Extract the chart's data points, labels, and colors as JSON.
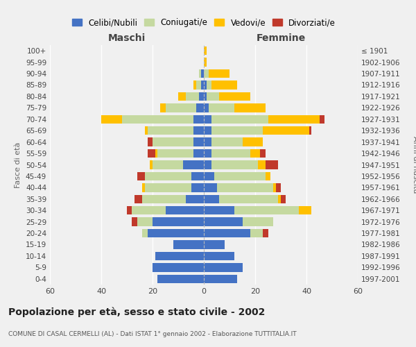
{
  "age_groups": [
    "100+",
    "95-99",
    "90-94",
    "85-89",
    "80-84",
    "75-79",
    "70-74",
    "65-69",
    "60-64",
    "55-59",
    "50-54",
    "45-49",
    "40-44",
    "35-39",
    "30-34",
    "25-29",
    "20-24",
    "15-19",
    "10-14",
    "5-9",
    "0-4"
  ],
  "birth_years": [
    "≤ 1901",
    "1902-1906",
    "1907-1911",
    "1912-1916",
    "1917-1921",
    "1922-1926",
    "1927-1931",
    "1932-1936",
    "1937-1941",
    "1942-1946",
    "1947-1951",
    "1952-1956",
    "1957-1961",
    "1962-1966",
    "1967-1971",
    "1972-1976",
    "1977-1981",
    "1982-1986",
    "1987-1991",
    "1992-1996",
    "1997-2001"
  ],
  "maschi": {
    "celibi": [
      0,
      0,
      1,
      1,
      2,
      3,
      4,
      4,
      4,
      4,
      8,
      5,
      5,
      7,
      15,
      20,
      22,
      12,
      19,
      20,
      18
    ],
    "coniugati": [
      0,
      0,
      1,
      2,
      5,
      12,
      28,
      18,
      16,
      14,
      12,
      18,
      18,
      17,
      13,
      6,
      2,
      0,
      0,
      0,
      0
    ],
    "vedovi": [
      0,
      0,
      0,
      1,
      3,
      2,
      8,
      1,
      0,
      1,
      1,
      0,
      1,
      0,
      0,
      0,
      0,
      0,
      0,
      0,
      0
    ],
    "divorziati": [
      0,
      0,
      0,
      0,
      0,
      0,
      0,
      0,
      2,
      3,
      0,
      3,
      0,
      3,
      2,
      2,
      0,
      0,
      0,
      0,
      0
    ]
  },
  "femmine": {
    "nubili": [
      0,
      0,
      0,
      1,
      1,
      2,
      3,
      3,
      3,
      3,
      3,
      4,
      5,
      6,
      12,
      15,
      18,
      8,
      12,
      15,
      13
    ],
    "coniugate": [
      0,
      0,
      2,
      2,
      5,
      10,
      22,
      20,
      12,
      15,
      18,
      20,
      22,
      23,
      25,
      12,
      5,
      0,
      0,
      0,
      0
    ],
    "vedove": [
      1,
      1,
      8,
      10,
      12,
      12,
      20,
      18,
      8,
      4,
      3,
      2,
      1,
      1,
      5,
      0,
      0,
      0,
      0,
      0,
      0
    ],
    "divorziate": [
      0,
      0,
      0,
      0,
      0,
      0,
      2,
      1,
      0,
      2,
      5,
      0,
      2,
      2,
      0,
      0,
      2,
      0,
      0,
      0,
      0
    ]
  },
  "colors": {
    "celibi": "#4472c4",
    "coniugati": "#c5d9a0",
    "vedovi": "#ffc000",
    "divorziati": "#c0392b"
  },
  "xlim": 60,
  "title": "Popolazione per età, sesso e stato civile - 2002",
  "subtitle": "COMUNE DI CASAL CERMELLI (AL) - Dati ISTAT 1° gennaio 2002 - Elaborazione TUTTITALIA.IT",
  "ylabel": "Fasce di età",
  "ylabel_right": "Anni di nascita",
  "label_maschi": "Maschi",
  "label_femmine": "Femmine",
  "legend_labels": [
    "Celibi/Nubili",
    "Coniugati/e",
    "Vedovi/e",
    "Divorziati/e"
  ],
  "background_color": "#f0f0f0",
  "grid_color": "#ffffff",
  "text_color": "#444444"
}
